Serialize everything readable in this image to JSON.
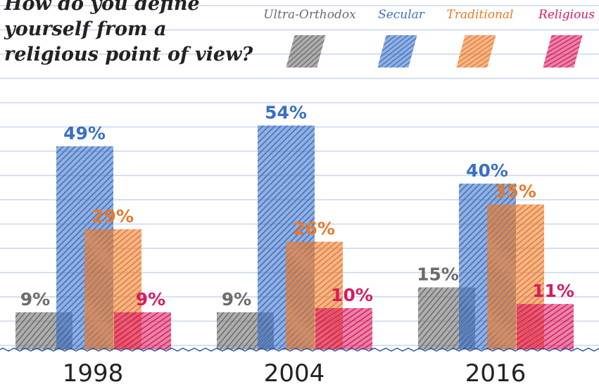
{
  "chart_data": {
    "type": "bar",
    "title": "How do you define yourself from a religious point of view?",
    "categories": [
      "1998",
      "2004",
      "2016"
    ],
    "series": [
      {
        "name": "Ultra-Orthodox",
        "color": "#6b6b6b",
        "values": [
          9,
          9,
          15
        ],
        "value_labels": [
          "9%",
          "9%",
          "15%"
        ]
      },
      {
        "name": "Secular",
        "color": "#3a6fc4",
        "values": [
          49,
          54,
          40
        ],
        "value_labels": [
          "49%",
          "54%",
          "40%"
        ]
      },
      {
        "name": "Traditional",
        "color": "#e8792a",
        "values": [
          29,
          26,
          35
        ],
        "value_labels": [
          "29%",
          "26%",
          "35%"
        ]
      },
      {
        "name": "Religious",
        "color": "#d81b5f",
        "values": [
          9,
          10,
          11
        ],
        "value_labels": [
          "9%",
          "10%",
          "11%"
        ]
      }
    ]
  }
}
